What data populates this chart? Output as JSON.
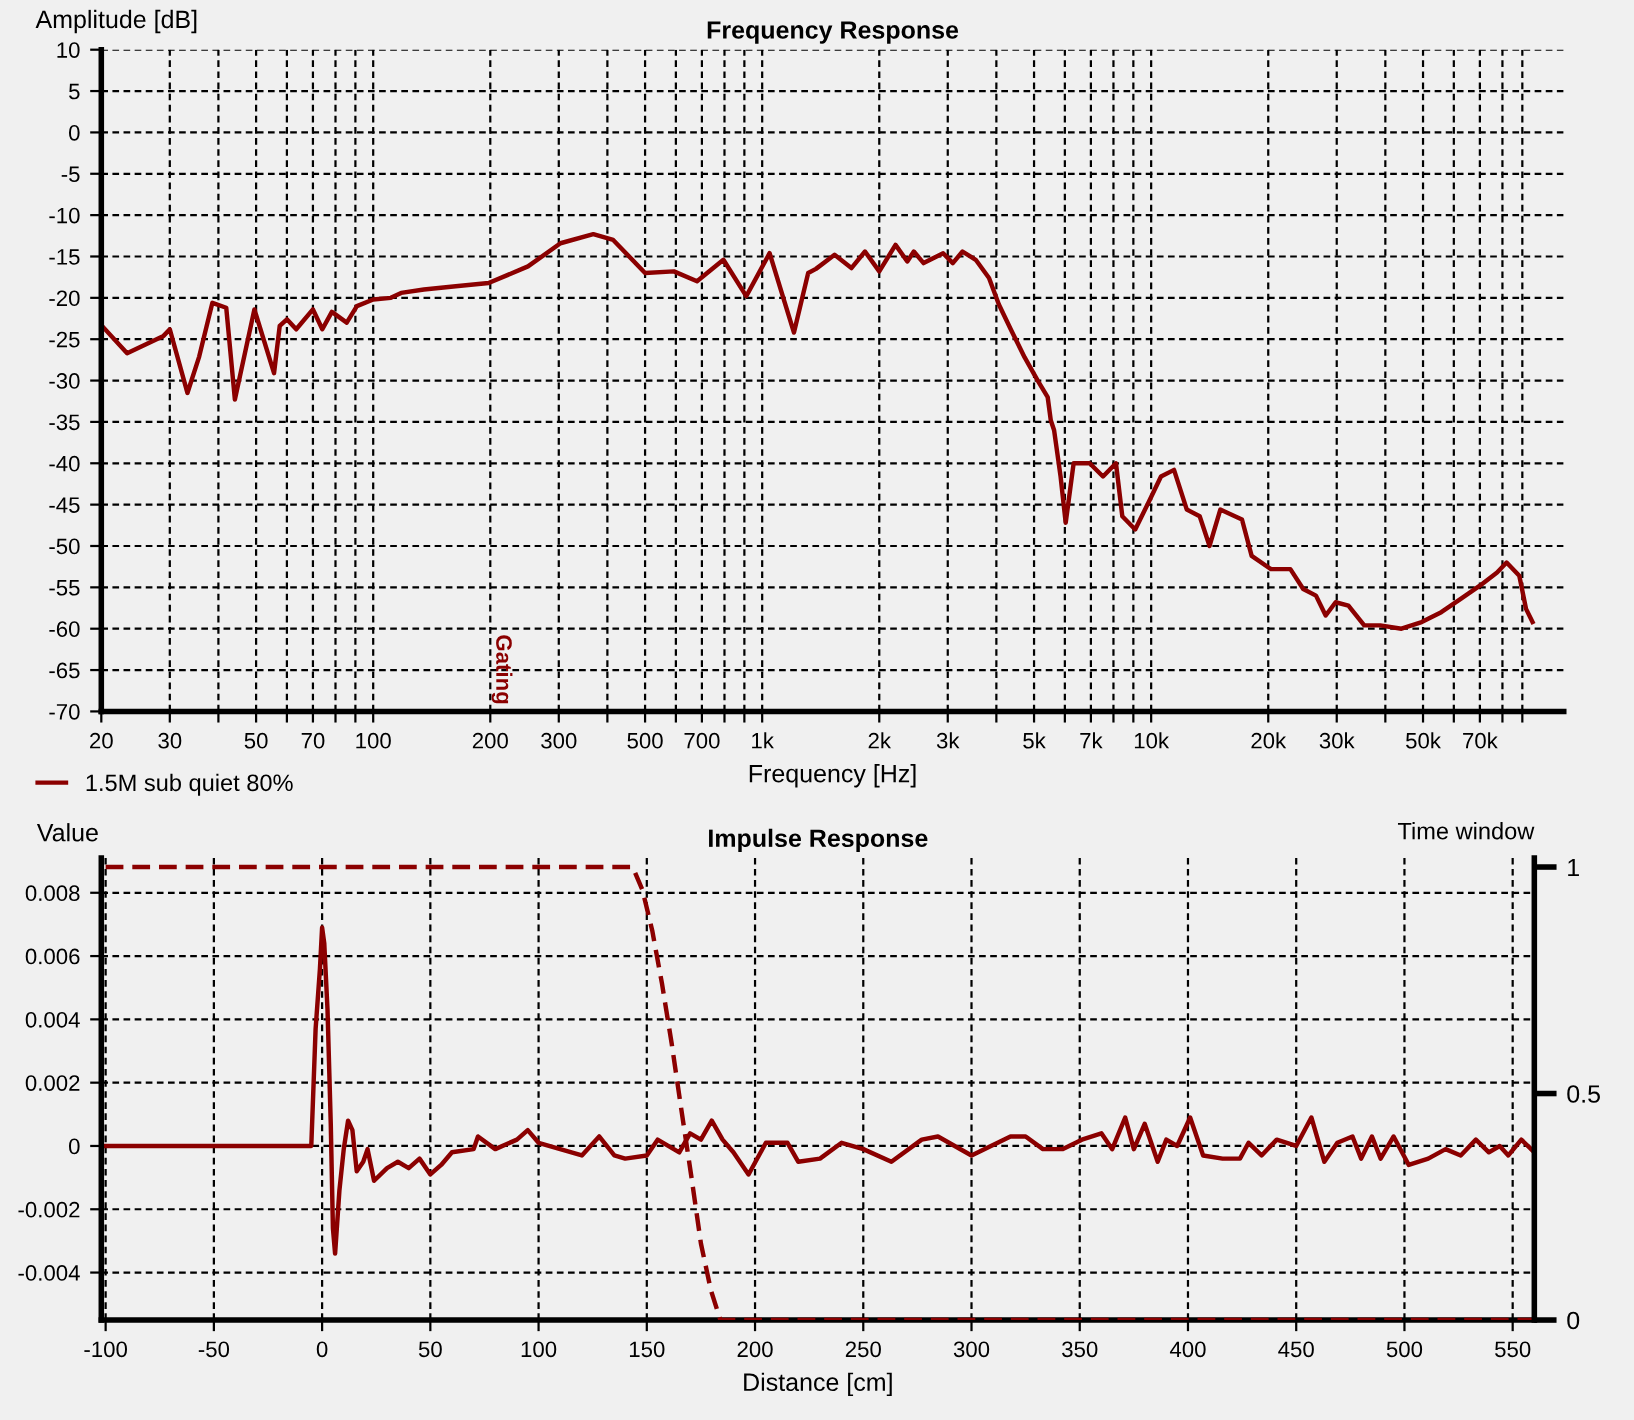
{
  "chart_data": [
    {
      "type": "line",
      "title": "Frequency Response",
      "xlabel": "Frequency [Hz]",
      "ylabel": "Amplitude [dB]",
      "log": "x",
      "grid": true,
      "legend": "bottom left",
      "xlim": [
        20,
        115000
      ],
      "ylim": [
        -70,
        10
      ],
      "xticks": [
        {
          "value": 20,
          "label": "20"
        },
        {
          "value": 30,
          "label": "30"
        },
        {
          "value": 40,
          "label": null
        },
        {
          "value": 50,
          "label": "50"
        },
        {
          "value": 60,
          "label": null
        },
        {
          "value": 70,
          "label": "70"
        },
        {
          "value": 80,
          "label": null
        },
        {
          "value": 90,
          "label": null
        },
        {
          "value": 100,
          "label": "100"
        },
        {
          "value": 200,
          "label": "200"
        },
        {
          "value": 300,
          "label": "300"
        },
        {
          "value": 400,
          "label": null
        },
        {
          "value": 500,
          "label": "500"
        },
        {
          "value": 600,
          "label": null
        },
        {
          "value": 700,
          "label": "700"
        },
        {
          "value": 800,
          "label": null
        },
        {
          "value": 900,
          "label": null
        },
        {
          "value": 1000,
          "label": "1k"
        },
        {
          "value": 2000,
          "label": "2k"
        },
        {
          "value": 3000,
          "label": "3k"
        },
        {
          "value": 4000,
          "label": null
        },
        {
          "value": 5000,
          "label": "5k"
        },
        {
          "value": 6000,
          "label": null
        },
        {
          "value": 7000,
          "label": "7k"
        },
        {
          "value": 8000,
          "label": null
        },
        {
          "value": 9000,
          "label": null
        },
        {
          "value": 10000,
          "label": "10k"
        },
        {
          "value": 20000,
          "label": "20k"
        },
        {
          "value": 30000,
          "label": "30k"
        },
        {
          "value": 40000,
          "label": null
        },
        {
          "value": 50000,
          "label": "50k"
        },
        {
          "value": 60000,
          "label": null
        },
        {
          "value": 70000,
          "label": "70k"
        },
        {
          "value": 80000,
          "label": null
        },
        {
          "value": 90000,
          "label": null
        }
      ],
      "yticks": [
        -70,
        -65,
        -60,
        -55,
        -50,
        -45,
        -40,
        -35,
        -30,
        -25,
        -20,
        -15,
        -10,
        -5,
        0,
        5,
        10
      ],
      "annotations": [
        "Gating"
      ],
      "series": [
        {
          "name": "1.5M sub quiet 80%",
          "color": "#8b0000",
          "x": [
            20,
            23.3,
            28.9,
            30,
            33.3,
            35.7,
            38.6,
            41.9,
            44.1,
            49.5,
            55.6,
            57.5,
            60,
            63.4,
            70,
            74,
            78.3,
            85.5,
            90.8,
            100,
            111,
            118,
            135,
            163,
            198,
            250,
            303,
            368,
            414,
            500,
            593,
            680,
            795,
            910,
            1045,
            1207,
            1313,
            1375,
            1535,
            1696,
            1838,
            2000,
            2202,
            2361,
            2454,
            2600,
            2919,
            3091,
            3274,
            3540,
            3830,
            4060,
            4377,
            4730,
            5110,
            5420,
            5520,
            5630,
            5850,
            6030,
            6320,
            6950,
            7520,
            8120,
            8430,
            9100,
            9830,
            10600,
            11450,
            12350,
            13330,
            14130,
            15060,
            17120,
            18130,
            20330,
            22800,
            24600,
            26530,
            28100,
            29800,
            32150,
            35300,
            38800,
            44000,
            49600,
            55700,
            62500,
            70000,
            77500,
            82000,
            88400,
            92000,
            95600
          ],
          "values": [
            -23.3,
            -26.7,
            -24.6,
            -23.8,
            -31.5,
            -27.1,
            -20.6,
            -21.2,
            -32.3,
            -21.4,
            -29.1,
            -23.4,
            -22.6,
            -23.8,
            -21.4,
            -23.8,
            -21.7,
            -23,
            -21,
            -20.2,
            -20,
            -19.4,
            -19,
            -18.6,
            -18.2,
            -16.2,
            -13.4,
            -12.3,
            -13,
            -17,
            -16.8,
            -18,
            -15.4,
            -19.8,
            -14.6,
            -24.2,
            -17,
            -16.5,
            -14.8,
            -16.4,
            -14.4,
            -16.8,
            -13.6,
            -15.6,
            -14.4,
            -15.8,
            -14.6,
            -15.8,
            -14.4,
            -15.4,
            -17.6,
            -20.8,
            -24,
            -27.2,
            -30,
            -32,
            -34.8,
            -36,
            -41.6,
            -47.2,
            -40,
            -40,
            -41.6,
            -40,
            -46.4,
            -48,
            -44.8,
            -41.6,
            -40.8,
            -45.6,
            -46.4,
            -50,
            -45.6,
            -46.8,
            -51.2,
            -52.8,
            -52.8,
            -55.2,
            -56,
            -58.4,
            -56.8,
            -57.2,
            -59.6,
            -59.6,
            -60,
            -59.2,
            -58,
            -56.4,
            -54.8,
            -53.2,
            -52,
            -53.6,
            -57.6,
            -59.2
          ]
        }
      ]
    },
    {
      "type": "line",
      "title": "Impulse Response",
      "xlabel": "Distance [cm]",
      "ylabel": "Value",
      "y2label": "Time window",
      "grid": true,
      "xlim": [
        -102,
        560
      ],
      "ylim": [
        -0.0055,
        0.0091
      ],
      "y2lim": [
        0,
        1.02
      ],
      "xticks": [
        -100,
        -50,
        0,
        50,
        100,
        150,
        200,
        250,
        300,
        350,
        400,
        450,
        500,
        550
      ],
      "yticks": [
        -0.004,
        -0.002,
        0,
        0.002,
        0.004,
        0.006,
        0.008
      ],
      "y2ticks": [
        0,
        0.5,
        1
      ],
      "series": [
        {
          "color": "#8b0000",
          "line_style": "solid",
          "x": [
            -100,
            -5,
            -3,
            -1,
            0,
            1,
            2.5,
            4,
            5,
            6,
            8,
            10,
            12,
            14,
            16,
            19,
            21,
            24,
            30,
            35,
            40,
            45,
            50,
            55,
            60,
            70,
            72,
            80,
            90,
            95,
            100,
            110,
            120,
            128,
            135,
            140,
            150,
            155,
            165,
            170,
            175,
            180,
            185,
            190,
            197,
            205,
            215,
            220,
            230,
            240,
            250,
            263,
            277,
            284.5,
            300,
            318,
            325,
            333,
            342,
            351,
            360,
            365,
            371,
            375,
            380,
            386,
            390,
            395,
            401,
            407,
            416,
            424,
            428,
            434,
            441,
            450,
            457,
            463,
            469,
            476,
            480,
            485,
            489,
            495,
            502,
            511,
            519,
            526,
            533,
            539,
            544,
            548,
            554,
            560
          ],
          "values": [
            0,
            0,
            0.0037,
            0.0056,
            0.0069,
            0.0064,
            0.0043,
            0.0007,
            -0.0026,
            -0.0034,
            -0.0014,
            -0.0001,
            0.0008,
            0.0005,
            -0.0008,
            -0.0005,
            -0.0001,
            -0.0011,
            -0.0007,
            -0.0005,
            -0.0007,
            -0.0004,
            -0.0009,
            -0.0006,
            -0.0002,
            -0.0001,
            0.0003,
            -0.0001,
            0.0002,
            0.0005,
            0.0001,
            -0.0001,
            -0.0003,
            0.0003,
            -0.0003,
            -0.0004,
            -0.0003,
            0.0002,
            -0.0002,
            0.0004,
            0.0002,
            0.0008,
            0.0002,
            -0.0002,
            -0.0009,
            0.0001,
            0.0001,
            -0.0005,
            -0.0004,
            0.0001,
            -0.0001,
            -0.0005,
            0.0002,
            0.0003,
            -0.0003,
            0.0003,
            0.0003,
            -0.0001,
            -0.0001,
            0.0002,
            0.0004,
            -0.0001,
            0.0009,
            -0.0001,
            0.0007,
            -0.0005,
            0.0002,
            0,
            0.0009,
            -0.0003,
            -0.0004,
            -0.0004,
            0.0001,
            -0.0003,
            0.0002,
            0,
            0.0009,
            -0.0005,
            0.0001,
            0.0003,
            -0.0004,
            0.0003,
            -0.0004,
            0.0003,
            -0.0006,
            -0.0004,
            -0.0001,
            -0.0003,
            0.0002,
            -0.0002,
            0,
            -0.0003,
            0.0002,
            -0.0002
          ]
        },
        {
          "color": "#8b0000",
          "axis": "y2",
          "line_style": "dashed",
          "x": [
            -100,
            143.5,
            148,
            152.5,
            157,
            161.5,
            166,
            170.6,
            175,
            179.6,
            184,
            560
          ],
          "values": [
            1,
            1,
            0.949,
            0.86,
            0.743,
            0.61,
            0.463,
            0.316,
            0.169,
            0.066,
            0,
            0
          ]
        }
      ]
    }
  ]
}
